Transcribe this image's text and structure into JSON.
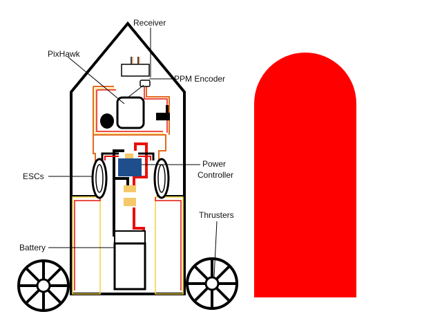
{
  "colors": {
    "outline": "#000000",
    "wire_red": "#e8100a",
    "wire_orange": "#e36a1a",
    "wire_yellow": "#f4d23a",
    "connector": "#f5c86a",
    "power_controller": "#1f4e8c",
    "thruster_ghost": "#fe0000",
    "background": "#ffffff"
  },
  "labels": {
    "receiver": "Receiver",
    "pixhawk": "PixHawk",
    "ppm_encoder": "PPM Encoder",
    "power_controller_line1": "Power",
    "power_controller_line2": "Controller",
    "escs": "ESCs",
    "thrusters": "Thrusters",
    "battery": "Battery"
  },
  "icons": {
    "wheels": "wheel-icon"
  }
}
